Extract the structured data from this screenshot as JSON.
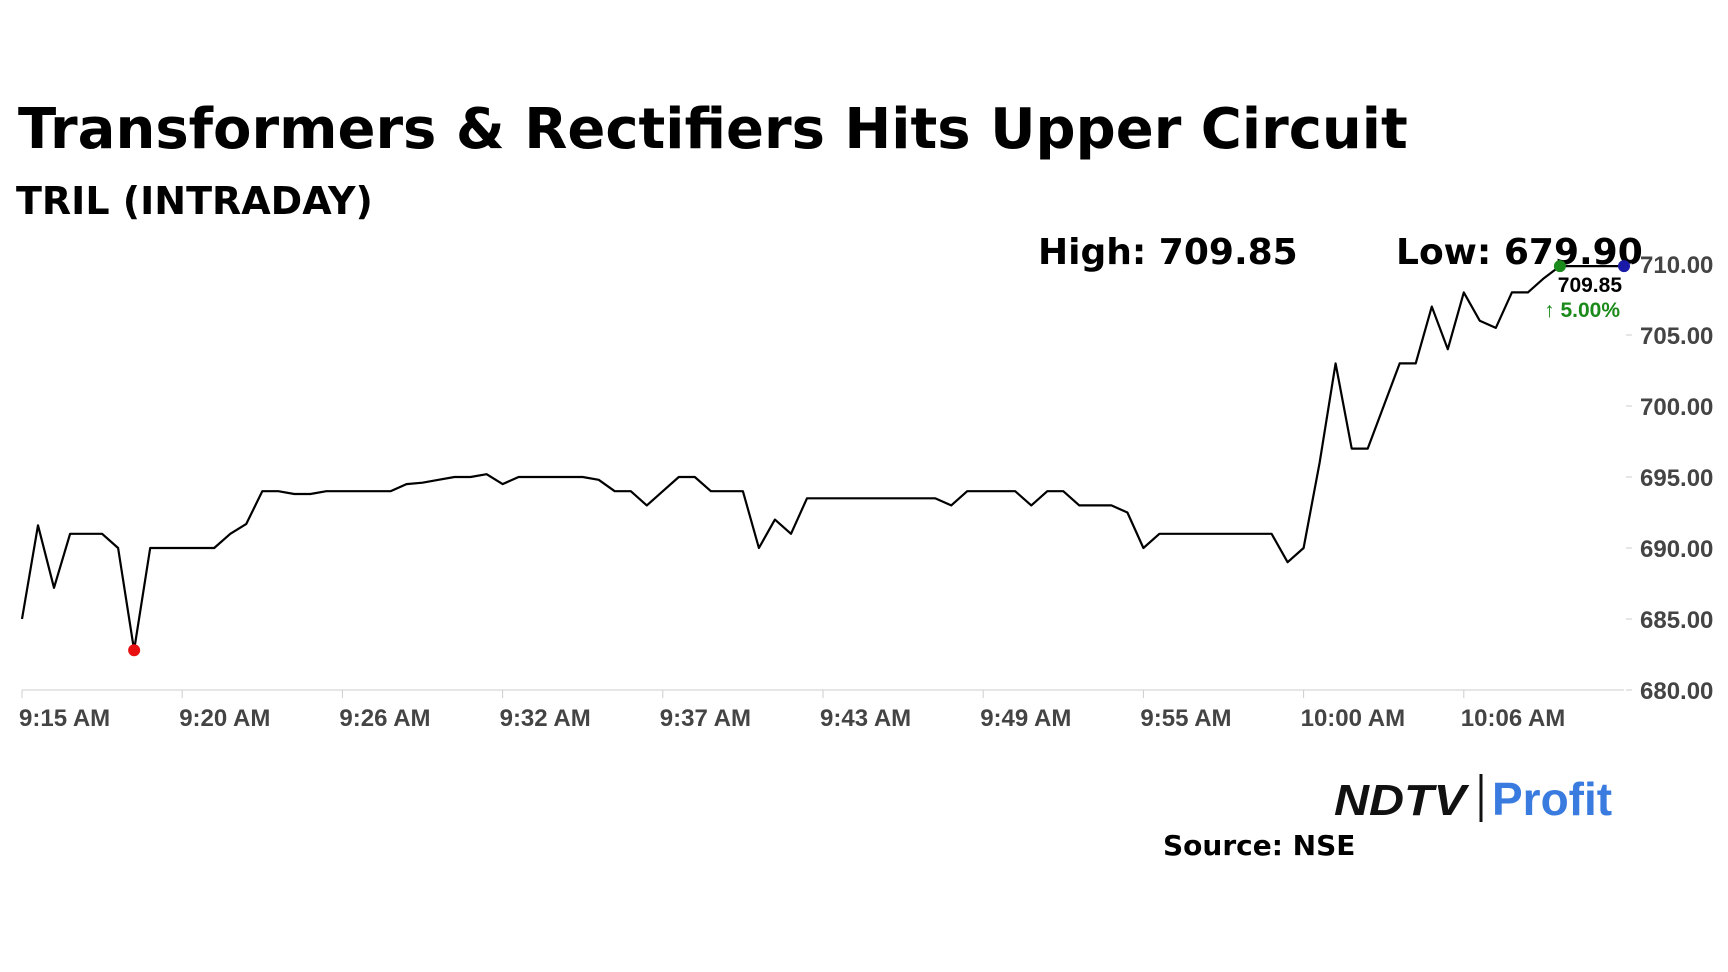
{
  "chart_data": {
    "type": "line",
    "title": "Transformers & Rectifiers Hits Upper Circuit",
    "subtitle": "TRIL (INTRADAY)",
    "high_label": "High: 709.85",
    "low_label": "Low: 679.90",
    "last_label": "709.85",
    "change_label": "↑ 5.00%",
    "source": "Source: NSE",
    "logo": [
      "NDTV",
      "Profit"
    ],
    "color": "#000000",
    "low_color": "#e81010",
    "high_color": "#1a8a1a",
    "last_color": "#1a1aa8",
    "categories": [
      "9:15 AM",
      null,
      null,
      null,
      null,
      null,
      null,
      null,
      null,
      null,
      "9:20 AM",
      null,
      null,
      null,
      null,
      null,
      null,
      null,
      null,
      null,
      "9:26 AM",
      null,
      null,
      null,
      null,
      null,
      null,
      null,
      null,
      null,
      "9:32 AM",
      null,
      null,
      null,
      null,
      null,
      null,
      null,
      null,
      null,
      "9:37 AM",
      null,
      null,
      null,
      null,
      null,
      null,
      null,
      null,
      null,
      "9:43 AM",
      null,
      null,
      null,
      null,
      null,
      null,
      null,
      null,
      null,
      "9:49 AM",
      null,
      null,
      null,
      null,
      null,
      null,
      null,
      null,
      null,
      "9:55 AM",
      null,
      null,
      null,
      null,
      null,
      null,
      null,
      null,
      null,
      "10:00 AM",
      null,
      null,
      null,
      null,
      null,
      null,
      null,
      null,
      null,
      "10:06 AM",
      null,
      null,
      null,
      null,
      null,
      null,
      null,
      null,
      null,
      null
    ],
    "values": [
      685,
      691.6,
      687.2,
      691,
      691,
      691,
      690,
      682.8,
      690,
      690,
      690,
      690,
      690,
      691,
      691.7,
      694,
      694,
      693.8,
      693.8,
      694,
      694,
      694,
      694,
      694,
      694.5,
      694.6,
      694.8,
      695,
      695,
      695.2,
      694.5,
      695,
      695,
      695,
      695,
      695,
      694.8,
      694,
      694,
      693,
      694,
      695,
      695,
      694,
      694,
      694,
      690,
      692,
      691,
      693.5,
      693.5,
      693.5,
      693.5,
      693.5,
      693.5,
      693.5,
      693.5,
      693.5,
      693,
      694,
      694,
      694,
      694,
      693,
      694,
      694,
      693,
      693,
      693,
      692.5,
      690,
      691,
      691,
      691,
      691,
      691,
      691,
      691,
      691,
      689,
      690,
      696,
      703,
      697,
      697,
      700,
      703,
      703,
      707,
      704,
      708,
      706,
      705.5,
      708,
      708,
      709,
      709.85,
      709.85,
      709.85,
      709.85,
      709.85
    ],
    "ylim": [
      680,
      710
    ],
    "yticks": [
      {
        "value": 680,
        "label": "680.00"
      },
      {
        "value": 685,
        "label": "685.00"
      },
      {
        "value": 690,
        "label": "690.00"
      },
      {
        "value": 695,
        "label": "695.00"
      },
      {
        "value": 700,
        "label": "700.00"
      },
      {
        "value": 705,
        "label": "705.00"
      },
      {
        "value": 710,
        "label": "710.00"
      }
    ]
  }
}
